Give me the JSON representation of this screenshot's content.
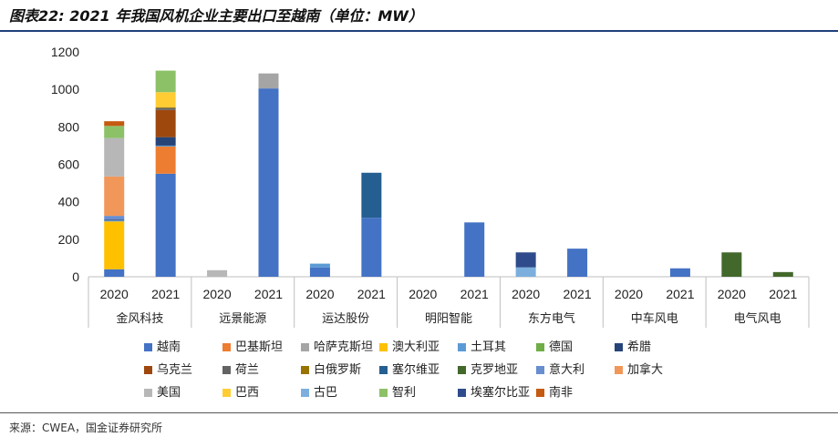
{
  "title": "图表22: 2021 年我国风机企业主要出口至越南（单位：MW）",
  "source": "来源：CWEA，国金证券研究所",
  "chart_data": {
    "type": "bar",
    "stacked": true,
    "ylim": [
      0,
      1200
    ],
    "yticks": [
      0,
      200,
      400,
      600,
      800,
      1000,
      1200
    ],
    "grid": false,
    "legend_position": "bottom",
    "groups": [
      "金风科技",
      "远景能源",
      "运达股份",
      "明阳智能",
      "东方电气",
      "中车风电",
      "电气风电"
    ],
    "x": [
      "2020",
      "2021",
      "2020",
      "2021",
      "2020",
      "2021",
      "2020",
      "2021",
      "2020",
      "2021",
      "2020",
      "2021",
      "2020",
      "2021"
    ],
    "series": [
      {
        "name": "越南",
        "color": "#4472c4",
        "values": [
          40,
          550,
          0,
          1005,
          50,
          315,
          0,
          290,
          0,
          150,
          0,
          45,
          0,
          0
        ]
      },
      {
        "name": "巴基斯坦",
        "color": "#ed7d31",
        "values": [
          0,
          145,
          0,
          0,
          0,
          0,
          0,
          0,
          0,
          0,
          0,
          0,
          0,
          0
        ]
      },
      {
        "name": "哈萨克斯坦",
        "color": "#a5a5a5",
        "values": [
          0,
          0,
          0,
          80,
          0,
          0,
          0,
          0,
          0,
          0,
          0,
          0,
          0,
          0
        ]
      },
      {
        "name": "澳大利亚",
        "color": "#ffc000",
        "values": [
          255,
          0,
          0,
          0,
          0,
          0,
          0,
          0,
          0,
          0,
          0,
          0,
          0,
          0
        ]
      },
      {
        "name": "土耳其",
        "color": "#5b9bd5",
        "values": [
          5,
          5,
          0,
          0,
          20,
          0,
          0,
          0,
          0,
          0,
          0,
          0,
          0,
          0
        ]
      },
      {
        "name": "德国",
        "color": "#70ad47",
        "values": [
          0,
          0,
          0,
          0,
          0,
          0,
          0,
          0,
          0,
          0,
          0,
          0,
          0,
          0
        ]
      },
      {
        "name": "希腊",
        "color": "#264478",
        "values": [
          5,
          45,
          0,
          0,
          0,
          0,
          0,
          0,
          0,
          0,
          0,
          0,
          0,
          0
        ]
      },
      {
        "name": "乌克兰",
        "color": "#9e480e",
        "values": [
          0,
          145,
          0,
          0,
          0,
          0,
          0,
          0,
          0,
          0,
          0,
          0,
          0,
          0
        ]
      },
      {
        "name": "荷兰",
        "color": "#636363",
        "values": [
          0,
          10,
          0,
          0,
          0,
          0,
          0,
          0,
          0,
          0,
          0,
          0,
          0,
          0
        ]
      },
      {
        "name": "白俄罗斯",
        "color": "#997300",
        "values": [
          0,
          5,
          0,
          0,
          0,
          0,
          0,
          0,
          0,
          0,
          0,
          0,
          0,
          0
        ]
      },
      {
        "name": "塞尔维亚",
        "color": "#255e91",
        "values": [
          0,
          0,
          0,
          0,
          0,
          240,
          0,
          0,
          0,
          0,
          0,
          0,
          0,
          0
        ]
      },
      {
        "name": "克罗地亚",
        "color": "#43682b",
        "values": [
          0,
          0,
          0,
          0,
          0,
          0,
          0,
          0,
          0,
          0,
          0,
          0,
          130,
          25
        ]
      },
      {
        "name": "意大利",
        "color": "#698ed0",
        "values": [
          20,
          0,
          0,
          0,
          0,
          0,
          0,
          0,
          0,
          0,
          0,
          0,
          0,
          0
        ]
      },
      {
        "name": "加拿大",
        "color": "#f1975a",
        "values": [
          210,
          0,
          0,
          0,
          0,
          0,
          0,
          0,
          0,
          0,
          0,
          0,
          0,
          0
        ]
      },
      {
        "name": "美国",
        "color": "#b7b7b7",
        "values": [
          205,
          0,
          35,
          0,
          0,
          0,
          0,
          0,
          0,
          0,
          0,
          0,
          0,
          0
        ]
      },
      {
        "name": "巴西",
        "color": "#ffcd33",
        "values": [
          0,
          80,
          0,
          0,
          0,
          0,
          0,
          0,
          0,
          0,
          0,
          0,
          0,
          0
        ]
      },
      {
        "name": "古巴",
        "color": "#7cafdd",
        "values": [
          0,
          0,
          0,
          0,
          0,
          0,
          0,
          0,
          50,
          0,
          0,
          0,
          0,
          0
        ]
      },
      {
        "name": "智利",
        "color": "#8cc168",
        "values": [
          65,
          115,
          0,
          0,
          0,
          0,
          0,
          0,
          0,
          0,
          0,
          0,
          0,
          0
        ]
      },
      {
        "name": "埃塞尔比亚",
        "color": "#2f4b8c",
        "values": [
          0,
          0,
          0,
          0,
          0,
          0,
          0,
          0,
          80,
          0,
          0,
          0,
          0,
          0
        ]
      },
      {
        "name": "南非",
        "color": "#c55a11",
        "values": [
          25,
          0,
          0,
          0,
          0,
          0,
          0,
          0,
          0,
          0,
          0,
          0,
          0,
          0
        ]
      }
    ]
  }
}
